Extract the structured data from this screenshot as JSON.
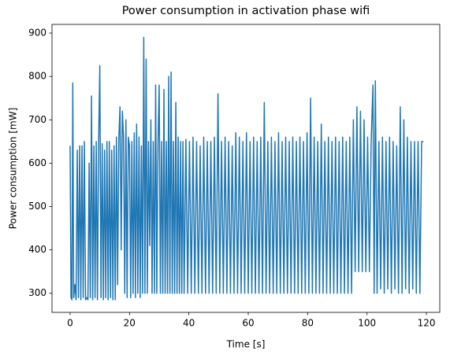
{
  "chart_data": {
    "type": "line",
    "title": "Power consumption in activation phase wifi",
    "xlabel": "Time [s]",
    "ylabel": "Power consumption [mW]",
    "color": "#1f77b4",
    "xlim": [
      -6.1,
      124.5
    ],
    "ylim": [
      256,
      920
    ],
    "xticks": [
      0,
      20,
      40,
      60,
      80,
      100,
      120
    ],
    "yticks": [
      300,
      400,
      500,
      600,
      700,
      800,
      900
    ],
    "x": [
      0,
      0.3,
      0.6,
      0.9,
      1.2,
      1.6,
      2,
      2.4,
      2.8,
      3.2,
      3.6,
      4,
      4.4,
      4.8,
      5.2,
      5.6,
      6,
      6.4,
      6.8,
      7.2,
      7.6,
      8,
      8.4,
      8.8,
      9.2,
      9.6,
      10,
      10.4,
      10.8,
      11.2,
      11.6,
      12,
      12.4,
      12.8,
      13.2,
      13.6,
      14,
      14.4,
      14.8,
      15.2,
      15.6,
      16,
      16.4,
      16.8,
      17.2,
      17.6,
      18,
      18.4,
      18.8,
      19.2,
      19.6,
      20,
      20.4,
      20.8,
      21.2,
      21.6,
      22,
      22.4,
      22.8,
      23.2,
      23.6,
      24,
      24.4,
      24.8,
      25.2,
      25.6,
      26,
      26.4,
      26.8,
      27.2,
      27.6,
      28,
      28.4,
      28.8,
      29.2,
      29.6,
      30,
      30.4,
      30.8,
      31.2,
      31.6,
      32,
      32.4,
      32.8,
      33.2,
      33.6,
      34,
      34.4,
      34.8,
      35.2,
      35.6,
      36,
      36.4,
      36.8,
      37.2,
      37.6,
      38,
      38.4,
      39,
      39.6,
      40.2,
      40.8,
      41.4,
      42,
      42.6,
      43.2,
      43.8,
      44.4,
      45,
      45.6,
      46.2,
      46.8,
      47.4,
      48,
      48.6,
      49.2,
      49.8,
      50.4,
      51,
      51.6,
      52.2,
      52.8,
      53.4,
      54,
      54.6,
      55.2,
      55.8,
      56.4,
      57,
      57.6,
      58.2,
      58.8,
      59.4,
      60,
      60.6,
      61.2,
      61.8,
      62.4,
      63,
      63.6,
      64.2,
      64.8,
      65.4,
      66,
      66.6,
      67.2,
      67.8,
      68.4,
      69,
      69.6,
      70.2,
      70.8,
      71.4,
      72,
      72.6,
      73.2,
      73.8,
      74.4,
      75,
      75.6,
      76.2,
      76.8,
      77.4,
      78,
      78.6,
      79.2,
      79.8,
      80.4,
      81,
      81.6,
      82.2,
      82.8,
      83.4,
      84,
      84.6,
      85.2,
      85.8,
      86.4,
      87,
      87.6,
      88.2,
      88.8,
      89.4,
      90,
      90.6,
      91.2,
      91.8,
      92.4,
      93,
      93.6,
      94.2,
      94.8,
      95.4,
      96,
      96.6,
      97.2,
      97.8,
      98.4,
      99,
      99.6,
      100.2,
      100.8,
      101.4,
      102,
      102.4,
      102.8,
      103.4,
      104,
      104.6,
      105.2,
      105.8,
      106.4,
      107,
      107.6,
      108.2,
      108.8,
      109.4,
      110,
      110.6,
      111.2,
      111.8,
      112.4,
      113,
      113.6,
      114.2,
      114.8,
      115.4,
      116,
      116.6,
      117.2,
      117.8,
      118.4,
      119
    ],
    "values": [
      640,
      290,
      285,
      785,
      290,
      320,
      285,
      630,
      290,
      640,
      285,
      640,
      290,
      650,
      285,
      290,
      285,
      600,
      290,
      755,
      285,
      640,
      290,
      650,
      285,
      650,
      825,
      290,
      645,
      285,
      630,
      290,
      650,
      285,
      650,
      290,
      630,
      285,
      640,
      285,
      660,
      320,
      655,
      730,
      400,
      720,
      660,
      300,
      700,
      290,
      660,
      640,
      290,
      650,
      300,
      670,
      290,
      690,
      300,
      660,
      290,
      640,
      300,
      890,
      300,
      840,
      300,
      650,
      410,
      700,
      300,
      650,
      300,
      780,
      300,
      650,
      780,
      300,
      650,
      300,
      770,
      300,
      650,
      300,
      800,
      300,
      810,
      300,
      650,
      300,
      740,
      300,
      660,
      300,
      650,
      300,
      650,
      300,
      655,
      300,
      650,
      300,
      660,
      300,
      650,
      300,
      640,
      300,
      660,
      300,
      650,
      300,
      650,
      300,
      660,
      300,
      760,
      300,
      650,
      300,
      660,
      300,
      650,
      300,
      640,
      300,
      670,
      300,
      660,
      300,
      650,
      300,
      670,
      300,
      650,
      300,
      660,
      300,
      650,
      300,
      660,
      300,
      740,
      300,
      650,
      300,
      660,
      300,
      650,
      300,
      670,
      300,
      650,
      300,
      660,
      300,
      650,
      300,
      660,
      300,
      650,
      300,
      660,
      300,
      650,
      300,
      670,
      300,
      750,
      300,
      660,
      300,
      650,
      300,
      690,
      300,
      650,
      300,
      660,
      300,
      650,
      300,
      660,
      300,
      650,
      300,
      660,
      300,
      650,
      300,
      660,
      300,
      700,
      350,
      730,
      350,
      720,
      350,
      700,
      350,
      660,
      350,
      650,
      780,
      300,
      790,
      300,
      650,
      310,
      660,
      300,
      650,
      310,
      660,
      300,
      650,
      310,
      640,
      300,
      730,
      300,
      700,
      310,
      660,
      300,
      650,
      310,
      650,
      300,
      650,
      300,
      650,
      650
    ]
  }
}
